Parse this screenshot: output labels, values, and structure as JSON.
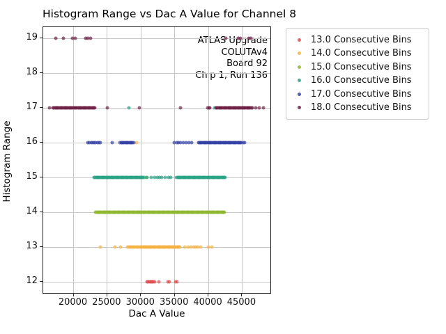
{
  "chart_data": {
    "type": "scatter",
    "title": "Histogram Range vs Dac A Value for Channel 8",
    "xlabel": "Dac A Value",
    "ylabel": "Histogram Range",
    "xlim": [
      15500,
      49400
    ],
    "ylim": [
      11.64,
      19.32
    ],
    "xticks": [
      20000,
      25000,
      30000,
      35000,
      40000,
      45000
    ],
    "yticks": [
      12,
      13,
      14,
      15,
      16,
      17,
      18,
      19
    ],
    "grid": true,
    "legend_position": "upper right outside plot",
    "annotation": {
      "lines": [
        "ATLAS Upgrade",
        "COLUTAv4",
        "Board 92",
        "Chip 1, Run 136"
      ]
    },
    "series": [
      {
        "name": "13.0 Consecutive Bins",
        "color": "#de4d4e",
        "y": 12,
        "bands": [
          [
            30900,
            32000,
            10
          ]
        ],
        "singles": [
          32700,
          34050,
          34230,
          35110,
          35390
        ],
        "outliers": []
      },
      {
        "name": "14.0 Consecutive Bins",
        "color": "#f7b13f",
        "y": 13,
        "bands": [
          [
            28030,
            29930,
            12
          ],
          [
            30100,
            35790,
            48
          ]
        ],
        "singles": [
          24000,
          26130,
          26990,
          36430,
          36950,
          37460,
          37870,
          38180,
          38490,
          38840,
          40040,
          40560
        ],
        "outliers": [
          [
            29310,
            16
          ]
        ]
      },
      {
        "name": "15.0 Consecutive Bins",
        "color": "#8eb82f",
        "y": 14,
        "bands": [
          [
            23280,
            42420,
            160
          ]
        ],
        "singles": [],
        "outliers": [
          [
            30750,
            15
          ]
        ]
      },
      {
        "name": "16.0 Consecutive Bins",
        "color": "#2aa185",
        "y": 15,
        "bands": [
          [
            23070,
            30440,
            62
          ],
          [
            35280,
            42520,
            61
          ]
        ],
        "singles": [
          30850,
          31470,
          31990,
          32500,
          32760,
          33020,
          33540,
          34060,
          34400
        ],
        "outliers": [
          [
            28170,
            17
          ],
          [
            40890,
            17
          ]
        ]
      },
      {
        "name": "17.0 Consecutive Bins",
        "color": "#3542a2",
        "y": 16,
        "bands": [
          [
            22140,
            24000,
            9
          ],
          [
            26900,
            28900,
            17
          ],
          [
            38510,
            44890,
            54
          ]
        ],
        "singles": [
          25760,
          34950,
          35300,
          35600,
          35900,
          36300,
          36700,
          37100,
          37500,
          45150,
          45350
        ],
        "outliers": []
      },
      {
        "name": "18.0 Consecutive Bins",
        "color": "#6d2145",
        "y": 17,
        "bands": [
          [
            16970,
            23170,
            52
          ],
          [
            41140,
            46490,
            45
          ]
        ],
        "singles": [
          16450,
          24965,
          29720,
          35870,
          39860,
          40050,
          40200,
          46990,
          47500,
          48200
        ],
        "outliers": [
          [
            17360,
            19
          ],
          [
            18500,
            19
          ],
          [
            19830,
            19
          ],
          [
            20240,
            19
          ],
          [
            21800,
            19
          ],
          [
            22100,
            19
          ],
          [
            22480,
            19
          ],
          [
            42630,
            19
          ],
          [
            44390,
            19
          ],
          [
            44730,
            19
          ],
          [
            45940,
            19
          ],
          [
            46280,
            19
          ]
        ]
      }
    ]
  }
}
